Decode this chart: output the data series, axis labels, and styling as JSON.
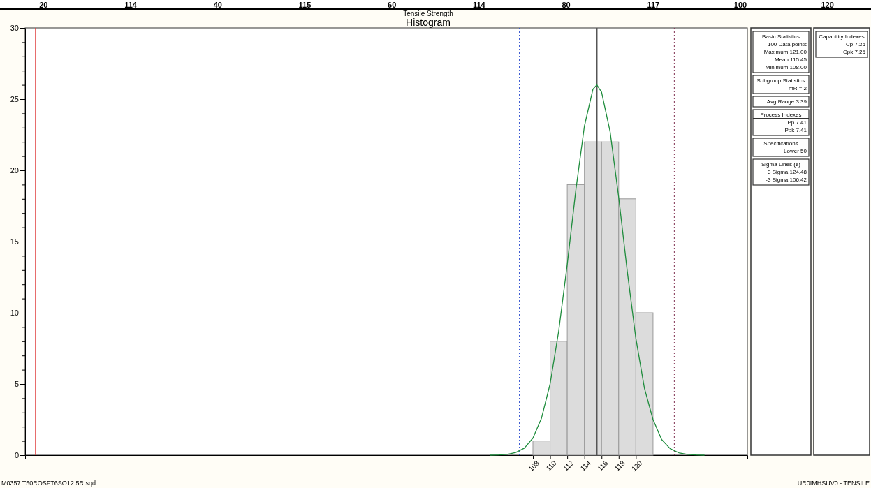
{
  "chart_data": {
    "type": "histogram",
    "title": "Histogram",
    "subtitle": "Tensile Strength",
    "bins": [
      108,
      110,
      112,
      114,
      116,
      118,
      120,
      122
    ],
    "values": [
      1,
      8,
      19,
      22,
      22,
      18,
      10
    ],
    "color": "#dcdcdc",
    "series": [
      {
        "type": "line",
        "color": "#1e8c3c",
        "x": [
          103,
          104,
          105,
          106,
          107,
          108,
          109,
          110,
          111,
          112,
          113,
          114,
          115,
          115.45,
          116,
          117,
          118,
          119,
          120,
          121,
          122,
          123,
          124,
          125,
          126,
          127,
          128
        ],
        "values": [
          0,
          0.02,
          0.06,
          0.19,
          0.5,
          1.2,
          2.6,
          5,
          8.7,
          13.4,
          18.6,
          23.1,
          25.7,
          26,
          25.5,
          22.7,
          18.1,
          12.9,
          8.2,
          4.7,
          2.5,
          1.1,
          0.46,
          0.17,
          0.06,
          0.02,
          0
        ]
      }
    ],
    "xlim": [
      48.8,
      133
    ],
    "xticks": [
      108,
      110,
      112,
      114,
      116,
      118,
      120
    ],
    "ylim": [
      0,
      30
    ],
    "yticks": [
      0,
      {
        "value": 1,
        "label": null
      },
      {
        "value": 2,
        "label": null
      },
      {
        "value": 3,
        "label": null
      },
      {
        "value": 4,
        "label": null
      },
      5,
      {
        "value": 6,
        "label": null
      },
      {
        "value": 7,
        "label": null
      },
      {
        "value": 8,
        "label": null
      },
      {
        "value": 9,
        "label": null
      },
      10,
      {
        "value": 11,
        "label": null
      },
      {
        "value": 12,
        "label": null
      },
      {
        "value": 13,
        "label": null
      },
      {
        "value": 14,
        "label": null
      },
      15,
      {
        "value": 16,
        "label": null
      },
      {
        "value": 17,
        "label": null
      },
      {
        "value": 18,
        "label": null
      },
      {
        "value": 19,
        "label": null
      },
      20,
      {
        "value": 21,
        "label": null
      },
      {
        "value": 22,
        "label": null
      },
      {
        "value": 23,
        "label": null
      },
      {
        "value": 24,
        "label": null
      },
      25,
      {
        "value": 26,
        "label": null
      },
      {
        "value": 27,
        "label": null
      },
      {
        "value": 28,
        "label": null
      },
      {
        "value": 29,
        "label": null
      },
      30
    ],
    "ref_lines": [
      {
        "axis": "x",
        "value": 50,
        "label": null,
        "color": "#e04040",
        "line_style": "solid"
      },
      {
        "axis": "x",
        "value": 106.42,
        "label": null,
        "color": "#3050d0",
        "line_style": "dotted"
      },
      {
        "axis": "x",
        "value": 115.45,
        "label": null,
        "color": "#555555",
        "line_style": "solid"
      },
      {
        "axis": "x",
        "value": 124.48,
        "label": null,
        "color": "#803050",
        "line_style": "dotted"
      }
    ],
    "grid": false,
    "annotations": [
      "20",
      "114",
      "40",
      "115",
      "60",
      "114",
      "80",
      "117",
      "100",
      "120",
      "Basic Statistics",
      "100 Data points",
      "Maximum 121.00",
      "Mean 115.45",
      "Minimum 108.00",
      "Subgroup Statistics",
      "mR = 2",
      "Avg Range 3.39",
      "Process Indexes",
      "Pp 7.41",
      "Ppk 7.41",
      "Specifications",
      "Lower 50",
      "Sigma Lines (e)",
      "3 Sigma 124.48",
      "-3 Sigma 106.42",
      "Capability Indexes",
      "Cp 7.25",
      "Cpk 7.25",
      "M0357 T50ROSFT6SO12.5R.sqd",
      "UR0IMHSUV0 - TENSILE"
    ]
  }
}
